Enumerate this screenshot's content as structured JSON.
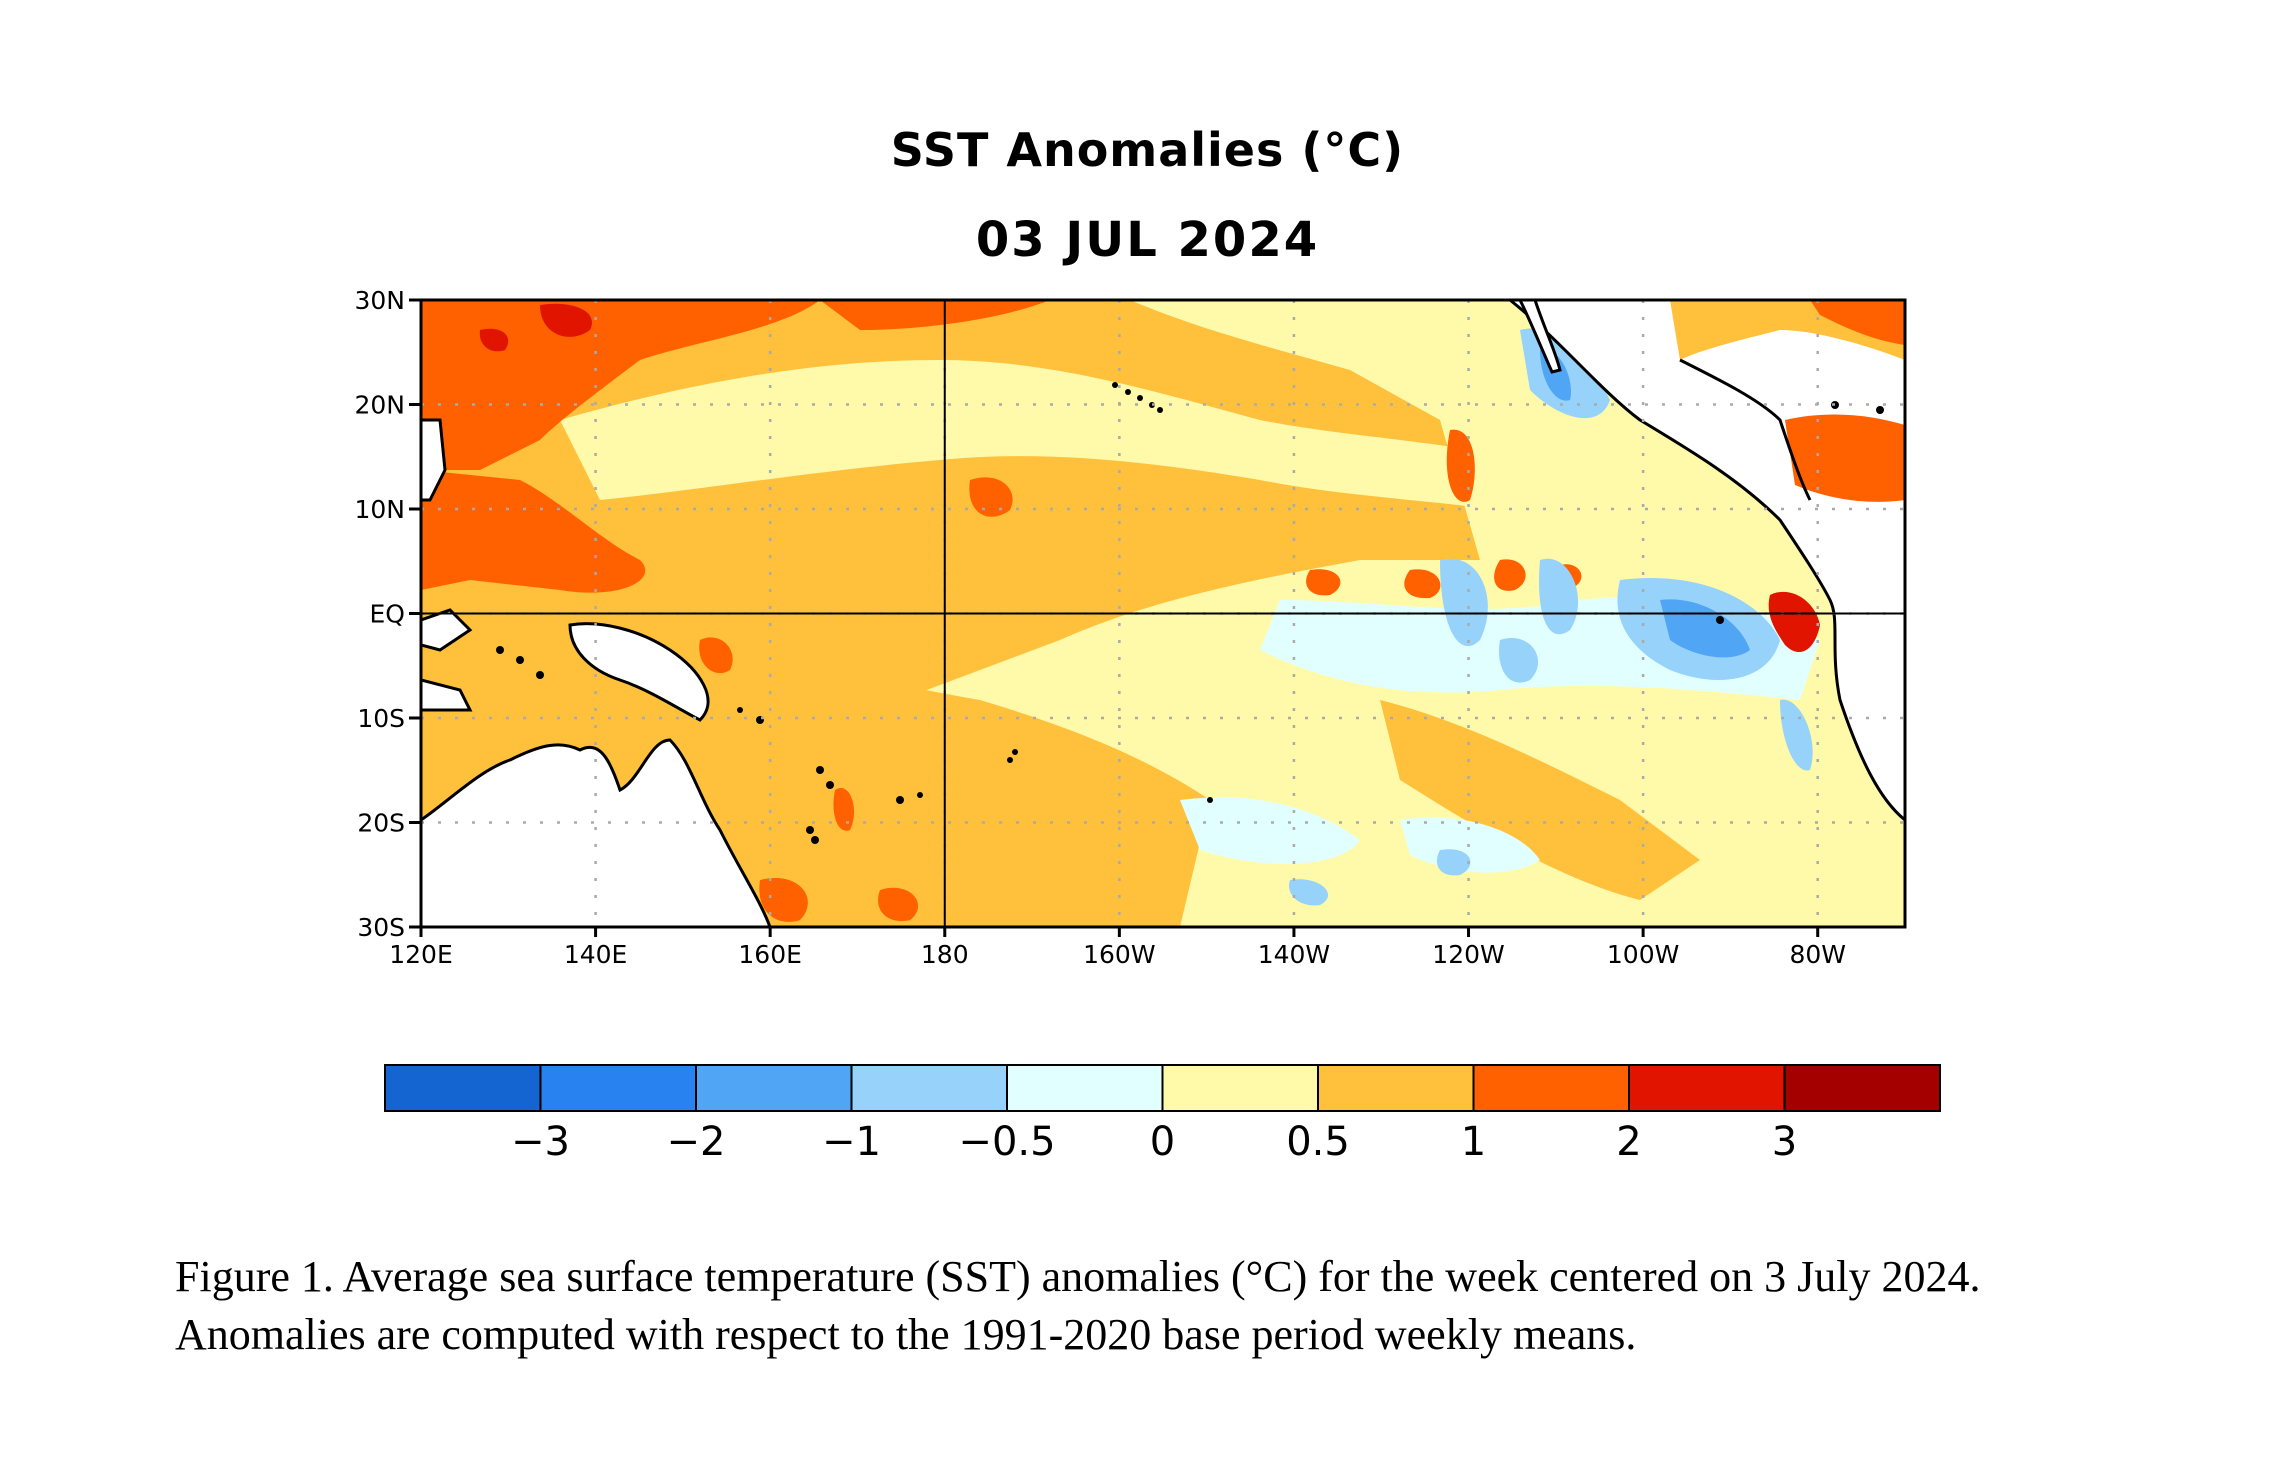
{
  "title": {
    "line1": "SST Anomalies (°C)",
    "line2": "03 JUL 2024"
  },
  "map": {
    "lon_range": [
      120,
      290
    ],
    "lat_range": [
      -30,
      30
    ],
    "lon_ticks": [
      {
        "value": 120,
        "label": "120E"
      },
      {
        "value": 140,
        "label": "140E"
      },
      {
        "value": 160,
        "label": "160E"
      },
      {
        "value": 180,
        "label": "180"
      },
      {
        "value": 200,
        "label": "160W"
      },
      {
        "value": 220,
        "label": "140W"
      },
      {
        "value": 240,
        "label": "120W"
      },
      {
        "value": 260,
        "label": "100W"
      },
      {
        "value": 280,
        "label": "80W"
      }
    ],
    "lat_ticks": [
      {
        "value": 30,
        "label": "30N"
      },
      {
        "value": 20,
        "label": "20N"
      },
      {
        "value": 10,
        "label": "10N"
      },
      {
        "value": 0,
        "label": "EQ"
      },
      {
        "value": -10,
        "label": "10S"
      },
      {
        "value": -20,
        "label": "20S"
      },
      {
        "value": -30,
        "label": "30S"
      }
    ],
    "grid": "dotted",
    "reference_lines": {
      "equator": 0,
      "dateline": 180
    }
  },
  "colorbar": {
    "colors": [
      "#1464d2",
      "#2882f0",
      "#50a5f5",
      "#96d2fa",
      "#e1ffff",
      "#fffaaa",
      "#ffc03c",
      "#ff6000",
      "#e11400",
      "#a50000"
    ],
    "labels": [
      "−3",
      "−2",
      "−1",
      "−0.5",
      "0",
      "0.5",
      "1",
      "2",
      "3"
    ]
  },
  "caption": "Figure 1. Average sea surface temperature (SST) anomalies (°C) for the week centered on 3 July 2024.  Anomalies are computed with respect to the 1991-2020 base period weekly means."
}
